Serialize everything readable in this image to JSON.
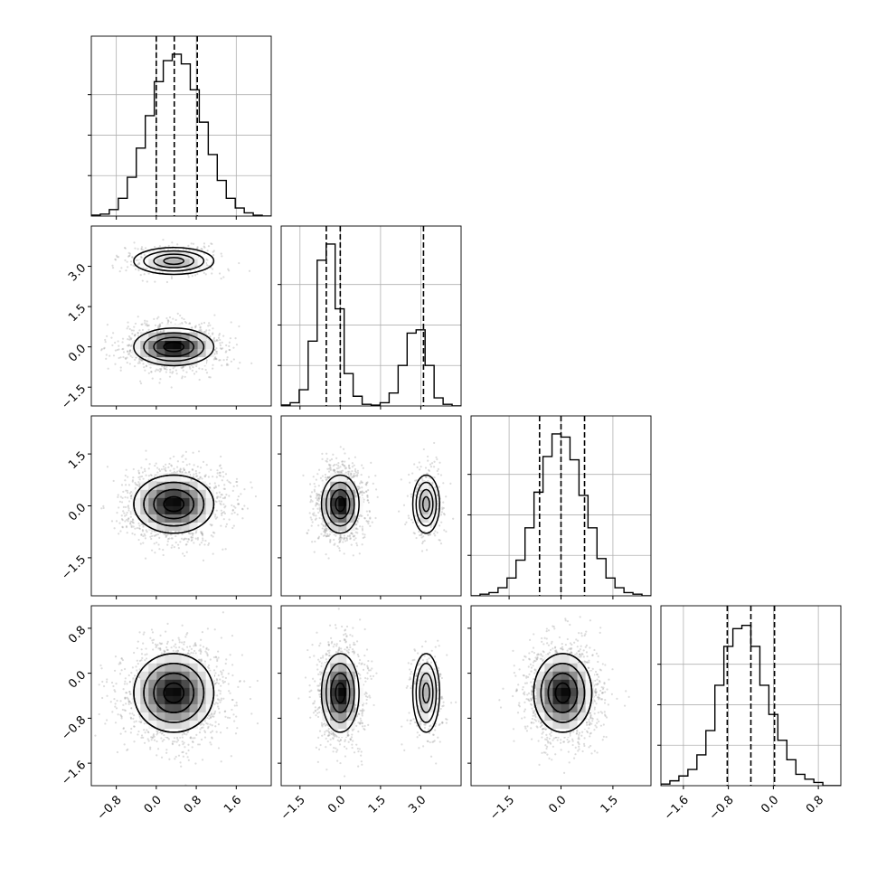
{
  "chart_data": {
    "type": "corner",
    "n_params": 4,
    "grid": true,
    "colors": {
      "line": "#000000",
      "grid": "#b0b0b0",
      "points": "#9a9a9a"
    },
    "params": [
      {
        "range": [
          -1.3,
          2.3
        ],
        "ticks": [
          -0.8,
          0.0,
          0.8,
          1.6
        ],
        "tick_labels": [
          "−0.8",
          "0.0",
          "0.8",
          "1.6"
        ],
        "quantiles": [
          0.0,
          0.36,
          0.82
        ],
        "hist_counts": [
          0.006,
          0.012,
          0.04,
          0.11,
          0.24,
          0.42,
          0.62,
          0.83,
          0.96,
          1.0,
          0.94,
          0.78,
          0.58,
          0.38,
          0.22,
          0.11,
          0.05,
          0.02,
          0.005,
          0.0
        ]
      },
      {
        "range": [
          -2.2,
          4.5
        ],
        "ticks": [
          -1.5,
          0.0,
          1.5,
          3.0
        ],
        "tick_labels": [
          "−1.5",
          "0.0",
          "1.5",
          "3.0"
        ],
        "quantiles": [
          -0.52,
          0.0,
          3.1
        ],
        "hist_counts": [
          0.006,
          0.02,
          0.1,
          0.4,
          0.9,
          1.0,
          0.6,
          0.2,
          0.06,
          0.01,
          0.005,
          0.02,
          0.08,
          0.25,
          0.45,
          0.47,
          0.25,
          0.05,
          0.01,
          0.0
        ]
      },
      {
        "range": [
          -2.6,
          2.6
        ],
        "ticks": [
          -1.5,
          0.0,
          1.5
        ],
        "tick_labels": [
          "−1.5",
          "0.0",
          "1.5"
        ],
        "quantiles": [
          -0.62,
          0.0,
          0.68
        ],
        "hist_counts": [
          0.0,
          0.01,
          0.02,
          0.05,
          0.11,
          0.22,
          0.42,
          0.64,
          0.86,
          1.0,
          0.98,
          0.84,
          0.62,
          0.42,
          0.23,
          0.11,
          0.05,
          0.02,
          0.01,
          0.0
        ]
      },
      {
        "range": [
          -2.0,
          1.2
        ],
        "ticks": [
          -1.6,
          -0.8,
          0.0,
          0.8
        ],
        "tick_labels": [
          "−1.6",
          "−0.8",
          "0.0",
          "0.8"
        ],
        "quantiles": [
          -0.82,
          -0.4,
          0.02
        ],
        "hist_counts": [
          0.01,
          0.03,
          0.06,
          0.1,
          0.19,
          0.34,
          0.62,
          0.86,
          0.97,
          0.99,
          0.86,
          0.62,
          0.44,
          0.28,
          0.16,
          0.07,
          0.04,
          0.02,
          0.0,
          0.0
        ]
      }
    ],
    "modes": [
      {
        "weight": 0.78,
        "mean": [
          0.35,
          0.0,
          0.05,
          -0.35
        ],
        "sd": [
          0.4,
          0.35,
          0.42,
          0.35
        ]
      },
      {
        "weight": 0.22,
        "mean": [
          0.35,
          3.2,
          0.05,
          -0.35
        ],
        "sd": [
          0.4,
          0.25,
          0.42,
          0.35
        ]
      }
    ]
  }
}
